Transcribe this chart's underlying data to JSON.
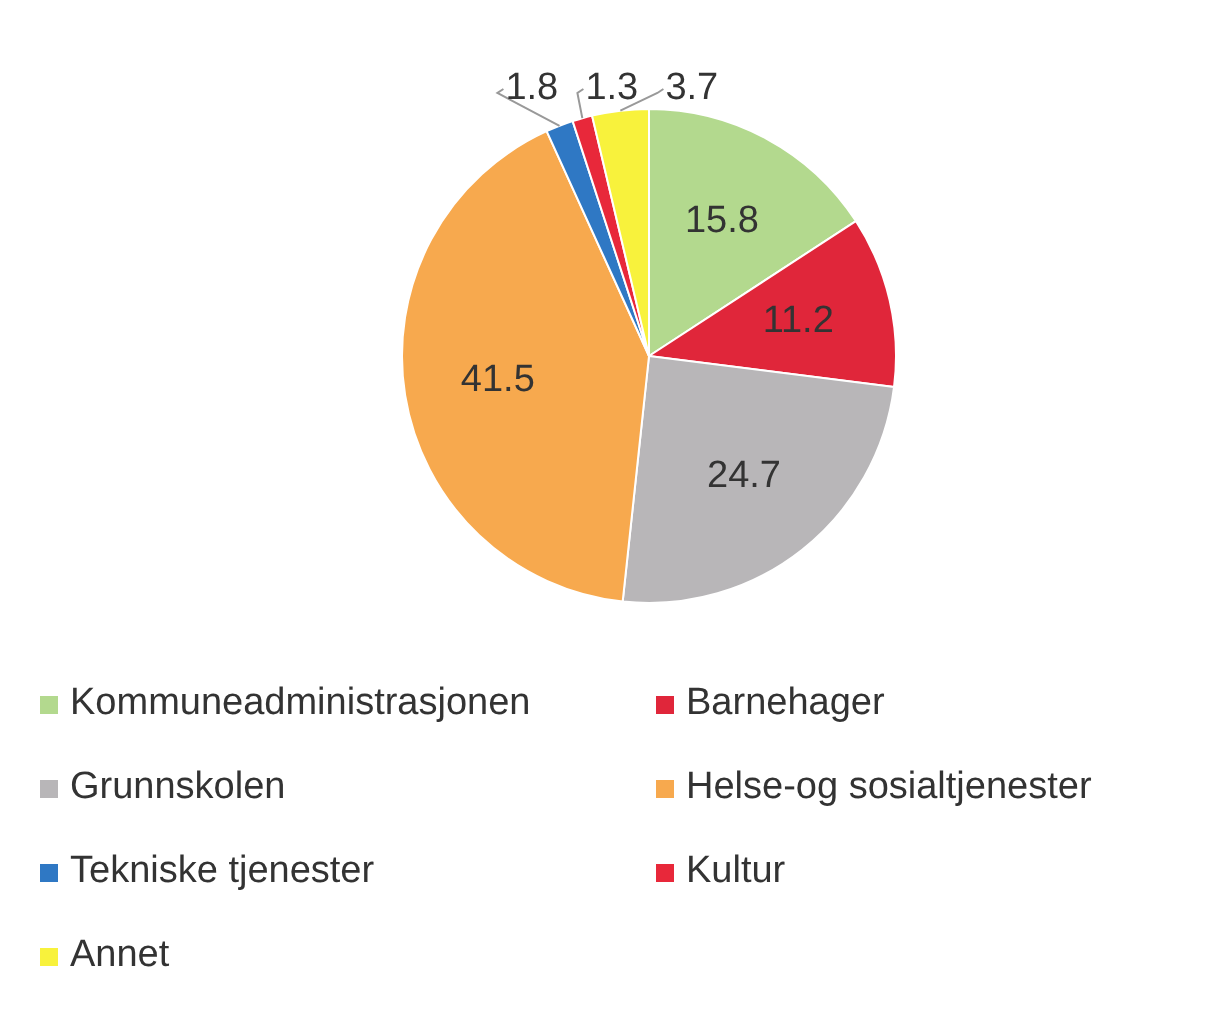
{
  "chart_data": {
    "type": "pie",
    "categories": [
      "Kommuneadministrasjonen",
      "Barnehager",
      "Grunnskolen",
      "Helse-og sosialtjenester",
      "Tekniske tjenester",
      "Kultur",
      "Annet"
    ],
    "values": [
      15.8,
      11.2,
      24.7,
      41.5,
      1.8,
      1.3,
      3.7
    ],
    "colors": [
      "#b3d98e",
      "#e0263a",
      "#b8b6b8",
      "#f7a94e",
      "#2f78c4",
      "#e8283a",
      "#f8f23c"
    ],
    "data_labels": true,
    "legend": "bottom"
  }
}
